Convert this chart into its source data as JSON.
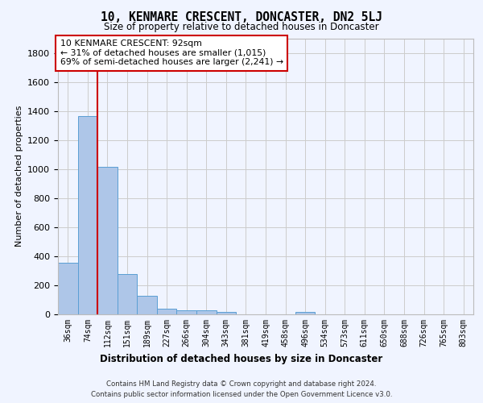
{
  "title": "10, KENMARE CRESCENT, DONCASTER, DN2 5LJ",
  "subtitle": "Size of property relative to detached houses in Doncaster",
  "xlabel": "Distribution of detached houses by size in Doncaster",
  "ylabel": "Number of detached properties",
  "footer_line1": "Contains HM Land Registry data © Crown copyright and database right 2024.",
  "footer_line2": "Contains public sector information licensed under the Open Government Licence v3.0.",
  "categories": [
    "36sqm",
    "74sqm",
    "112sqm",
    "151sqm",
    "189sqm",
    "227sqm",
    "266sqm",
    "304sqm",
    "343sqm",
    "381sqm",
    "419sqm",
    "458sqm",
    "496sqm",
    "534sqm",
    "573sqm",
    "611sqm",
    "650sqm",
    "688sqm",
    "726sqm",
    "765sqm",
    "803sqm"
  ],
  "values": [
    355,
    1365,
    1015,
    280,
    125,
    40,
    30,
    25,
    18,
    0,
    0,
    0,
    18,
    0,
    0,
    0,
    0,
    0,
    0,
    0,
    0
  ],
  "bar_color": "#aec6e8",
  "bar_edge_color": "#5a9fd4",
  "grid_color": "#cccccc",
  "bg_color": "#f0f4ff",
  "axes_bg_color": "#f0f4ff",
  "red_line_x": 1.5,
  "annotation_text": "10 KENMARE CRESCENT: 92sqm\n← 31% of detached houses are smaller (1,015)\n69% of semi-detached houses are larger (2,241) →",
  "annotation_box_color": "#ffffff",
  "annotation_box_edge": "#cc0000",
  "red_line_color": "#cc0000",
  "ylim": [
    0,
    1900
  ],
  "yticks": [
    0,
    200,
    400,
    600,
    800,
    1000,
    1200,
    1400,
    1600,
    1800
  ]
}
